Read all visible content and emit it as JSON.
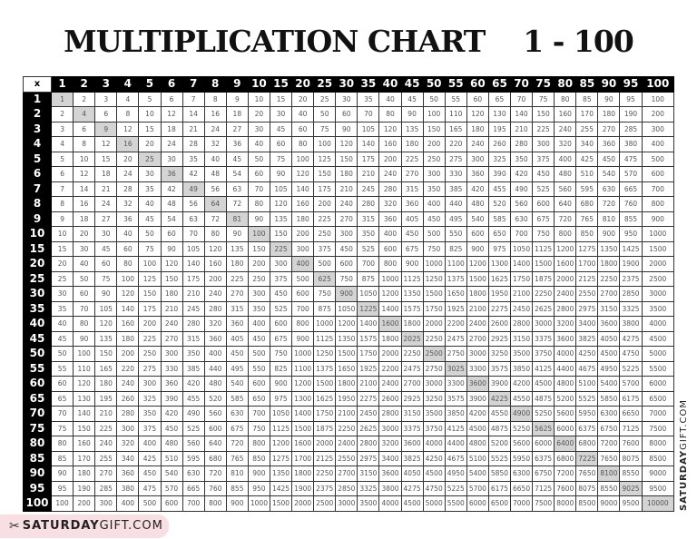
{
  "title": "MULTIPLICATION CHART    1 - 100",
  "corner_label": "x",
  "headers": [
    1,
    2,
    3,
    4,
    5,
    6,
    7,
    8,
    9,
    10,
    15,
    20,
    25,
    30,
    35,
    40,
    45,
    50,
    55,
    60,
    65,
    70,
    75,
    80,
    85,
    90,
    95,
    100
  ],
  "highlight_color": "#d4d4d4",
  "rows": [
    [
      1,
      2,
      3,
      4,
      5,
      6,
      7,
      8,
      9,
      10,
      15,
      20,
      25,
      30,
      35,
      40,
      45,
      50,
      55,
      60,
      65,
      70,
      75,
      80,
      85,
      90,
      95,
      100
    ],
    [
      2,
      4,
      6,
      8,
      10,
      12,
      14,
      16,
      18,
      20,
      30,
      40,
      50,
      60,
      70,
      80,
      90,
      100,
      110,
      120,
      130,
      140,
      150,
      160,
      170,
      180,
      190,
      200
    ],
    [
      3,
      6,
      9,
      12,
      15,
      18,
      21,
      24,
      27,
      30,
      45,
      60,
      75,
      90,
      105,
      120,
      135,
      150,
      165,
      180,
      195,
      210,
      225,
      240,
      255,
      270,
      285,
      300
    ],
    [
      4,
      8,
      12,
      16,
      20,
      24,
      28,
      32,
      36,
      40,
      60,
      80,
      100,
      120,
      140,
      160,
      180,
      200,
      220,
      240,
      260,
      280,
      300,
      320,
      340,
      360,
      380,
      400
    ],
    [
      5,
      10,
      15,
      20,
      25,
      30,
      35,
      40,
      45,
      50,
      75,
      100,
      125,
      150,
      175,
      200,
      225,
      250,
      275,
      300,
      325,
      350,
      375,
      400,
      425,
      450,
      475,
      500
    ],
    [
      6,
      12,
      18,
      24,
      30,
      36,
      42,
      48,
      54,
      60,
      90,
      120,
      150,
      180,
      210,
      240,
      270,
      300,
      330,
      360,
      390,
      420,
      450,
      480,
      510,
      540,
      570,
      600
    ],
    [
      7,
      14,
      21,
      28,
      35,
      42,
      49,
      56,
      63,
      70,
      105,
      140,
      175,
      210,
      245,
      280,
      315,
      350,
      385,
      420,
      455,
      490,
      525,
      560,
      595,
      630,
      665,
      700
    ],
    [
      8,
      16,
      24,
      32,
      40,
      48,
      56,
      64,
      72,
      80,
      120,
      160,
      200,
      240,
      280,
      320,
      360,
      400,
      440,
      480,
      520,
      560,
      600,
      640,
      680,
      720,
      760,
      800
    ],
    [
      9,
      18,
      27,
      36,
      45,
      54,
      63,
      72,
      81,
      90,
      135,
      180,
      225,
      270,
      315,
      360,
      405,
      450,
      495,
      540,
      585,
      630,
      675,
      720,
      765,
      810,
      855,
      900
    ],
    [
      10,
      20,
      30,
      40,
      50,
      60,
      70,
      80,
      90,
      100,
      150,
      200,
      250,
      300,
      350,
      400,
      450,
      500,
      550,
      600,
      650,
      700,
      750,
      800,
      850,
      900,
      950,
      1000
    ],
    [
      15,
      30,
      45,
      60,
      75,
      90,
      105,
      120,
      135,
      150,
      225,
      300,
      375,
      450,
      525,
      600,
      675,
      750,
      825,
      900,
      975,
      1050,
      1125,
      1200,
      1275,
      1350,
      1425,
      1500
    ],
    [
      20,
      40,
      60,
      80,
      100,
      120,
      140,
      160,
      180,
      200,
      300,
      400,
      500,
      600,
      700,
      800,
      900,
      1000,
      1100,
      1200,
      1300,
      1400,
      1500,
      1600,
      1700,
      1800,
      1900,
      2000
    ],
    [
      25,
      50,
      75,
      100,
      125,
      150,
      175,
      200,
      225,
      250,
      375,
      500,
      625,
      750,
      875,
      1000,
      1125,
      1250,
      1375,
      1500,
      1625,
      1750,
      1875,
      2000,
      2125,
      2250,
      2375,
      2500
    ],
    [
      30,
      60,
      90,
      120,
      150,
      180,
      210,
      240,
      270,
      300,
      450,
      600,
      750,
      900,
      1050,
      1200,
      1350,
      1500,
      1650,
      1800,
      1950,
      2100,
      2250,
      2400,
      2550,
      2700,
      2850,
      3000
    ],
    [
      35,
      70,
      105,
      140,
      175,
      210,
      245,
      280,
      315,
      350,
      525,
      700,
      875,
      1050,
      1225,
      1400,
      1575,
      1750,
      1925,
      2100,
      2275,
      2450,
      2625,
      2800,
      2975,
      3150,
      3325,
      3500
    ],
    [
      40,
      80,
      120,
      160,
      200,
      240,
      280,
      320,
      360,
      400,
      600,
      800,
      1000,
      1200,
      1400,
      1600,
      1800,
      2000,
      2200,
      2400,
      2600,
      2800,
      3000,
      3200,
      3400,
      3600,
      3800,
      4000
    ],
    [
      45,
      90,
      135,
      180,
      225,
      270,
      315,
      360,
      405,
      450,
      675,
      900,
      1125,
      1350,
      1575,
      1800,
      2025,
      2250,
      2475,
      2700,
      2925,
      3150,
      3375,
      3600,
      3825,
      4050,
      4275,
      4500
    ],
    [
      50,
      100,
      150,
      200,
      250,
      300,
      350,
      400,
      450,
      500,
      750,
      1000,
      1250,
      1500,
      1750,
      2000,
      2250,
      2500,
      2750,
      3000,
      3250,
      3500,
      3750,
      4000,
      4250,
      4500,
      4750,
      5000
    ],
    [
      55,
      110,
      165,
      220,
      275,
      330,
      385,
      440,
      495,
      550,
      825,
      1100,
      1375,
      1650,
      1925,
      2200,
      2475,
      2750,
      3025,
      3300,
      3575,
      3850,
      4125,
      4400,
      4675,
      4950,
      5225,
      5500
    ],
    [
      60,
      120,
      180,
      240,
      300,
      360,
      420,
      480,
      540,
      600,
      900,
      1200,
      1500,
      1800,
      2100,
      2400,
      2700,
      3000,
      3300,
      3600,
      3900,
      4200,
      4500,
      4800,
      5100,
      5400,
      5700,
      6000
    ],
    [
      65,
      130,
      195,
      260,
      325,
      390,
      455,
      520,
      585,
      650,
      975,
      1300,
      1625,
      1950,
      2275,
      2600,
      2925,
      3250,
      3575,
      3900,
      4225,
      4550,
      4875,
      5200,
      5525,
      5850,
      6175,
      6500
    ],
    [
      70,
      140,
      210,
      280,
      350,
      420,
      490,
      560,
      630,
      700,
      1050,
      1400,
      1750,
      2100,
      2450,
      2800,
      3150,
      3500,
      3850,
      4200,
      4550,
      4900,
      5250,
      5600,
      5950,
      6300,
      6650,
      7000
    ],
    [
      75,
      150,
      225,
      300,
      375,
      450,
      525,
      600,
      675,
      750,
      1125,
      1500,
      1875,
      2250,
      2625,
      3000,
      3375,
      3750,
      4125,
      4500,
      4875,
      5250,
      5625,
      6000,
      6375,
      6750,
      7125,
      7500
    ],
    [
      80,
      160,
      240,
      320,
      400,
      480,
      560,
      640,
      720,
      800,
      1200,
      1600,
      2000,
      2400,
      2800,
      3200,
      3600,
      4000,
      4400,
      4800,
      5200,
      5600,
      6000,
      6400,
      6800,
      7200,
      7600,
      8000
    ],
    [
      85,
      170,
      255,
      340,
      425,
      510,
      595,
      680,
      765,
      850,
      1275,
      1700,
      2125,
      2550,
      2975,
      3400,
      3825,
      4250,
      4675,
      5100,
      5525,
      5950,
      6375,
      6800,
      7225,
      7650,
      8075,
      8500
    ],
    [
      90,
      180,
      270,
      360,
      450,
      540,
      630,
      720,
      810,
      900,
      1350,
      1800,
      2250,
      2700,
      3150,
      3600,
      4050,
      4500,
      4950,
      5400,
      5850,
      6300,
      6750,
      7200,
      7650,
      8100,
      8550,
      9000
    ],
    [
      95,
      190,
      285,
      380,
      475,
      570,
      665,
      760,
      855,
      950,
      1425,
      1900,
      2375,
      2850,
      3325,
      3800,
      4275,
      4750,
      5225,
      5700,
      6175,
      6650,
      7125,
      7600,
      8075,
      8550,
      9025,
      9500
    ],
    [
      100,
      200,
      300,
      400,
      500,
      600,
      700,
      800,
      900,
      1000,
      1500,
      2000,
      2500,
      3000,
      3500,
      4000,
      4500,
      5000,
      5500,
      6000,
      6500,
      7000,
      7500,
      8000,
      8500,
      9000,
      9500,
      10000
    ]
  ],
  "branding": {
    "badge_bold": "SATURDAY",
    "badge_light": "GIFT.COM",
    "side_bold": "SATURDAY",
    "side_light": "GIFT.COM",
    "icon": "bow-icon",
    "badge_color": "#f7dfe4"
  }
}
